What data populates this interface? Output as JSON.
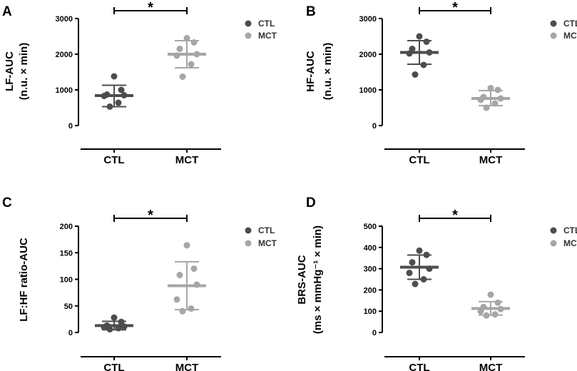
{
  "chart_data": [
    {
      "id": "A",
      "type": "scatter",
      "panel_label": "A",
      "ylabel_line1": "LF-AUC",
      "ylabel_line2": "(n.u. × min)",
      "ylim": [
        0,
        3000
      ],
      "yticks": [
        "0",
        "1000",
        "2000",
        "3000"
      ],
      "ytick_values": [
        0,
        1000,
        2000,
        3000
      ],
      "categories": [
        "CTL",
        "MCT"
      ],
      "series": [
        {
          "name": "CTL",
          "color": "#4d4d4d",
          "points": [
            1380,
            1000,
            870,
            850,
            830,
            640,
            530
          ],
          "mean": 840,
          "sd_low": 530,
          "sd_high": 1130
        },
        {
          "name": "MCT",
          "color": "#a6a6a6",
          "points": [
            2450,
            2330,
            2150,
            2000,
            1960,
            1720,
            1370
          ],
          "mean": 2000,
          "sd_low": 1620,
          "sd_high": 2380
        }
      ],
      "significance": "*",
      "legend": [
        "CTL",
        "MCT"
      ]
    },
    {
      "id": "B",
      "type": "scatter",
      "panel_label": "B",
      "ylabel_line1": "HF-AUC",
      "ylabel_line2": "(n.u. × min)",
      "ylim": [
        0,
        3000
      ],
      "yticks": [
        "0",
        "1000",
        "2000",
        "3000"
      ],
      "ytick_values": [
        0,
        1000,
        2000,
        3000
      ],
      "categories": [
        "CTL",
        "MCT"
      ],
      "series": [
        {
          "name": "CTL",
          "color": "#4d4d4d",
          "points": [
            2500,
            2350,
            2150,
            2050,
            2020,
            1700,
            1430
          ],
          "mean": 2050,
          "sd_low": 1720,
          "sd_high": 2380
        },
        {
          "name": "MCT",
          "color": "#a6a6a6",
          "points": [
            1050,
            1000,
            800,
            760,
            720,
            620,
            500
          ],
          "mean": 760,
          "sd_low": 560,
          "sd_high": 980
        },
        {
          "name": "",
          "color": "",
          "points": [],
          "mean": 0,
          "sd_low": 0,
          "sd_high": 0
        }
      ],
      "significance": "*",
      "legend": [
        "CTL",
        "MCT"
      ]
    },
    {
      "id": "C",
      "type": "scatter",
      "panel_label": "C",
      "ylabel_line1": "LF:HF ratio-AUC",
      "ylabel_line2": "",
      "ylim": [
        0,
        200
      ],
      "yticks": [
        "0",
        "50",
        "100",
        "150",
        "200"
      ],
      "ytick_values": [
        0,
        50,
        100,
        150,
        200
      ],
      "categories": [
        "CTL",
        "MCT"
      ],
      "series": [
        {
          "name": "CTL",
          "color": "#4d4d4d",
          "points": [
            28,
            20,
            13,
            11,
            10,
            8,
            6
          ],
          "mean": 13,
          "sd_low": 5,
          "sd_high": 21
        },
        {
          "name": "MCT",
          "color": "#a6a6a6",
          "points": [
            164,
            120,
            108,
            90,
            62,
            45,
            40
          ],
          "mean": 88,
          "sd_low": 43,
          "sd_high": 133
        }
      ],
      "significance": "*",
      "legend": [
        "CTL",
        "MCT"
      ]
    },
    {
      "id": "D",
      "type": "scatter",
      "panel_label": "D",
      "ylabel_line1": "BRS-AUC",
      "ylabel_line2": "(ms × mmHg⁻¹ × min)",
      "ylim": [
        0,
        500
      ],
      "yticks": [
        "0",
        "100",
        "200",
        "300",
        "400",
        "500"
      ],
      "ytick_values": [
        0,
        100,
        200,
        300,
        400,
        500
      ],
      "categories": [
        "CTL",
        "MCT"
      ],
      "series": [
        {
          "name": "CTL",
          "color": "#4d4d4d",
          "points": [
            385,
            365,
            330,
            300,
            280,
            250,
            228
          ],
          "mean": 307,
          "sd_low": 250,
          "sd_high": 364
        },
        {
          "name": "MCT",
          "color": "#a6a6a6",
          "points": [
            178,
            140,
            120,
            110,
            100,
            85,
            80
          ],
          "mean": 113,
          "sd_low": 82,
          "sd_high": 145
        }
      ],
      "significance": "*",
      "legend": [
        "CTL",
        "MCT"
      ]
    }
  ]
}
